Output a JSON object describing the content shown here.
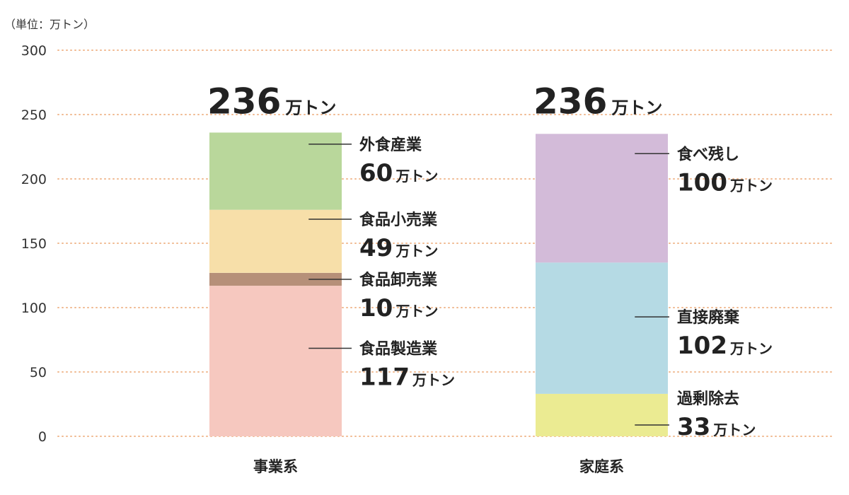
{
  "chart_data": {
    "type": "bar",
    "stacked": true,
    "unit_label": "（単位：万トン）",
    "value_suffix": "万トン",
    "ylim": [
      0,
      300
    ],
    "yticks": [
      0,
      50,
      100,
      150,
      200,
      250,
      300
    ],
    "grid": true,
    "categories": [
      "事業系",
      "家庭系"
    ],
    "totals": [
      236,
      236
    ],
    "stacks": [
      {
        "category": "事業系",
        "segments": [
          {
            "name": "食品製造業",
            "value": 117,
            "color": "#f6c8bf"
          },
          {
            "name": "食品卸売業",
            "value": 10,
            "color": "#b69079"
          },
          {
            "name": "食品小売業",
            "value": 49,
            "color": "#f7dfa9"
          },
          {
            "name": "外食産業",
            "value": 60,
            "color": "#b9d79b"
          }
        ]
      },
      {
        "category": "家庭系",
        "segments": [
          {
            "name": "過剰除去",
            "value": 33,
            "color": "#ebeb92"
          },
          {
            "name": "直接廃棄",
            "value": 102,
            "color": "#b5dae4"
          },
          {
            "name": "食べ残し",
            "value": 100,
            "color": "#d3bbd9"
          }
        ]
      }
    ],
    "colors": {
      "grid": "#f0b990",
      "leader": "#333333",
      "text": "#222222"
    }
  }
}
